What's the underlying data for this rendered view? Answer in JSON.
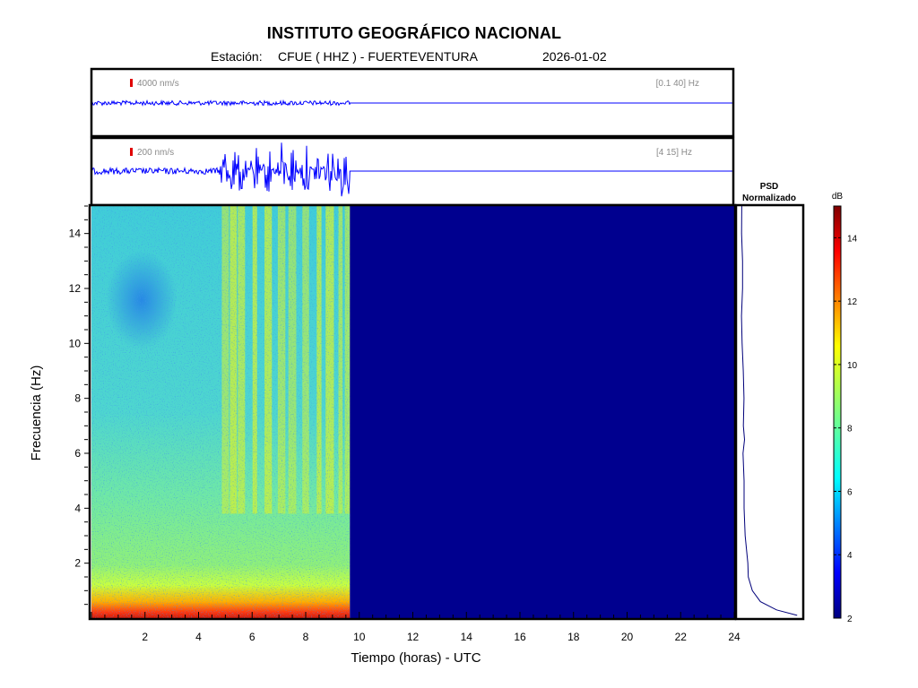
{
  "header": {
    "title": "INSTITUTO GEOGRÁFICO NACIONAL",
    "station_label": "Estación:",
    "station": "CFUE ( HHZ ) - FUERTEVENTURA",
    "date": "2026-01-02"
  },
  "colors": {
    "trace": "#0000ff",
    "scale_marker": "#e00000",
    "no_data": "#00008f",
    "psd_line": "#00007a"
  },
  "chart_data": [
    {
      "type": "line",
      "name": "trace-broadband",
      "scale_label": "4000 nm/s",
      "band_label": "[0.1 40] Hz",
      "data_end_hour": 9.65,
      "x_range": [
        0,
        24
      ]
    },
    {
      "type": "line",
      "name": "trace-filtered",
      "scale_label": "200 nm/s",
      "band_label": "[4 15] Hz",
      "data_end_hour": 9.65,
      "bursts_hours": [
        5.0,
        5.3,
        5.6,
        6.1,
        6.6,
        7.1,
        7.5,
        8.0,
        8.5,
        8.9,
        9.3,
        9.6
      ],
      "x_range": [
        0,
        24
      ]
    },
    {
      "type": "heatmap",
      "name": "spectrogram",
      "xlabel": "Tiempo (horas) - UTC",
      "ylabel": "Frecuencia  (Hz)",
      "xlim": [
        0,
        24
      ],
      "ylim": [
        0,
        15
      ],
      "xticks": [
        2,
        4,
        6,
        8,
        10,
        12,
        14,
        16,
        18,
        20,
        22,
        24
      ],
      "yticks": [
        2,
        4,
        6,
        8,
        10,
        12,
        14
      ],
      "data_end_hour": 9.65,
      "burst_hours": [
        5.0,
        5.3,
        5.6,
        6.1,
        6.6,
        7.1,
        7.5,
        8.0,
        8.5,
        8.9,
        9.3,
        9.6
      ]
    },
    {
      "type": "line",
      "name": "psd",
      "title_line1": "PSD",
      "title_line2": "Normalizado",
      "frequency_hz": [
        0.1,
        0.3,
        0.6,
        1,
        1.5,
        2,
        3,
        4,
        5,
        6,
        6.5,
        7,
        8,
        9,
        10,
        11,
        12,
        13,
        14,
        15
      ],
      "value_normalized": [
        0.92,
        0.6,
        0.35,
        0.23,
        0.17,
        0.14,
        0.11,
        0.09,
        0.09,
        0.09,
        0.11,
        0.08,
        0.08,
        0.08,
        0.07,
        0.06,
        0.06,
        0.06,
        0.05,
        0.06
      ]
    },
    {
      "type": "heatmap",
      "name": "colorbar",
      "label": "dB",
      "range": [
        2,
        15
      ],
      "ticks": [
        2,
        4,
        6,
        8,
        10,
        12,
        14
      ]
    }
  ]
}
